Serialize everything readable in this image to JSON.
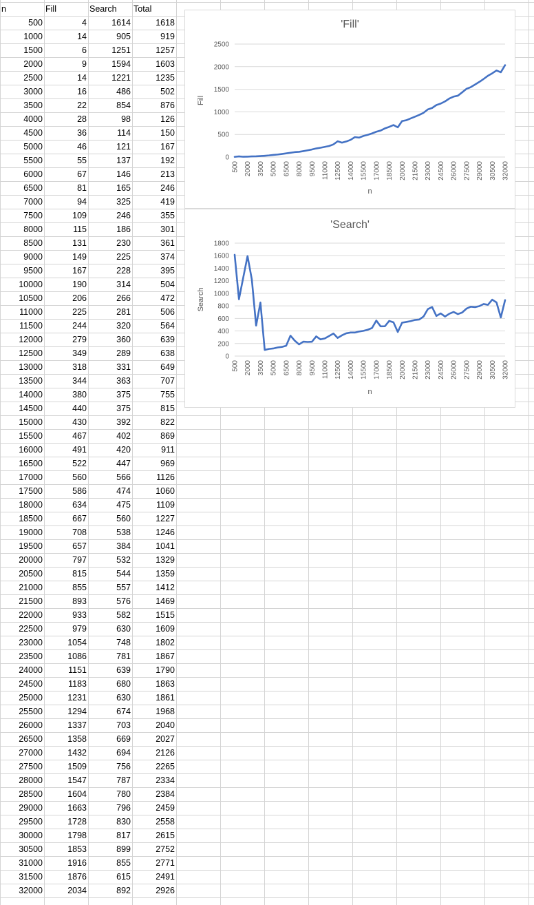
{
  "sheet": {
    "headers": [
      "n",
      "Fill",
      "Search",
      "Total"
    ],
    "rows": [
      [
        500,
        4,
        1614,
        1618
      ],
      [
        1000,
        14,
        905,
        919
      ],
      [
        1500,
        6,
        1251,
        1257
      ],
      [
        2000,
        9,
        1594,
        1603
      ],
      [
        2500,
        14,
        1221,
        1235
      ],
      [
        3000,
        16,
        486,
        502
      ],
      [
        3500,
        22,
        854,
        876
      ],
      [
        4000,
        28,
        98,
        126
      ],
      [
        4500,
        36,
        114,
        150
      ],
      [
        5000,
        46,
        121,
        167
      ],
      [
        5500,
        55,
        137,
        192
      ],
      [
        6000,
        67,
        146,
        213
      ],
      [
        6500,
        81,
        165,
        246
      ],
      [
        7000,
        94,
        325,
        419
      ],
      [
        7500,
        109,
        246,
        355
      ],
      [
        8000,
        115,
        186,
        301
      ],
      [
        8500,
        131,
        230,
        361
      ],
      [
        9000,
        149,
        225,
        374
      ],
      [
        9500,
        167,
        228,
        395
      ],
      [
        10000,
        190,
        314,
        504
      ],
      [
        10500,
        206,
        266,
        472
      ],
      [
        11000,
        225,
        281,
        506
      ],
      [
        11500,
        244,
        320,
        564
      ],
      [
        12000,
        279,
        360,
        639
      ],
      [
        12500,
        349,
        289,
        638
      ],
      [
        13000,
        318,
        331,
        649
      ],
      [
        13500,
        344,
        363,
        707
      ],
      [
        14000,
        380,
        375,
        755
      ],
      [
        14500,
        440,
        375,
        815
      ],
      [
        15000,
        430,
        392,
        822
      ],
      [
        15500,
        467,
        402,
        869
      ],
      [
        16000,
        491,
        420,
        911
      ],
      [
        16500,
        522,
        447,
        969
      ],
      [
        17000,
        560,
        566,
        1126
      ],
      [
        17500,
        586,
        474,
        1060
      ],
      [
        18000,
        634,
        475,
        1109
      ],
      [
        18500,
        667,
        560,
        1227
      ],
      [
        19000,
        708,
        538,
        1246
      ],
      [
        19500,
        657,
        384,
        1041
      ],
      [
        20000,
        797,
        532,
        1329
      ],
      [
        20500,
        815,
        544,
        1359
      ],
      [
        21000,
        855,
        557,
        1412
      ],
      [
        21500,
        893,
        576,
        1469
      ],
      [
        22000,
        933,
        582,
        1515
      ],
      [
        22500,
        979,
        630,
        1609
      ],
      [
        23000,
        1054,
        748,
        1802
      ],
      [
        23500,
        1086,
        781,
        1867
      ],
      [
        24000,
        1151,
        639,
        1790
      ],
      [
        24500,
        1183,
        680,
        1863
      ],
      [
        25000,
        1231,
        630,
        1861
      ],
      [
        25500,
        1294,
        674,
        1968
      ],
      [
        26000,
        1337,
        703,
        2040
      ],
      [
        26500,
        1358,
        669,
        2027
      ],
      [
        27000,
        1432,
        694,
        2126
      ],
      [
        27500,
        1509,
        756,
        2265
      ],
      [
        28000,
        1547,
        787,
        2334
      ],
      [
        28500,
        1604,
        780,
        2384
      ],
      [
        29000,
        1663,
        796,
        2459
      ],
      [
        29500,
        1728,
        830,
        2558
      ],
      [
        30000,
        1798,
        817,
        2615
      ],
      [
        30500,
        1853,
        899,
        2752
      ],
      [
        31000,
        1916,
        855,
        2771
      ],
      [
        31500,
        1876,
        615,
        2491
      ],
      [
        32000,
        2034,
        892,
        2926
      ]
    ]
  },
  "chart_data": [
    {
      "type": "line",
      "title": "'Fill'",
      "xlabel": "n",
      "ylabel": "Fill",
      "ylim": [
        0,
        2500
      ],
      "yticks": [
        0,
        500,
        1000,
        1500,
        2000,
        2500
      ],
      "x": [
        500,
        1000,
        1500,
        2000,
        2500,
        3000,
        3500,
        4000,
        4500,
        5000,
        5500,
        6000,
        6500,
        7000,
        7500,
        8000,
        8500,
        9000,
        9500,
        10000,
        10500,
        11000,
        11500,
        12000,
        12500,
        13000,
        13500,
        14000,
        14500,
        15000,
        15500,
        16000,
        16500,
        17000,
        17500,
        18000,
        18500,
        19000,
        19500,
        20000,
        20500,
        21000,
        21500,
        22000,
        22500,
        23000,
        23500,
        24000,
        24500,
        25000,
        25500,
        26000,
        26500,
        27000,
        27500,
        28000,
        28500,
        29000,
        29500,
        30000,
        30500,
        31000,
        31500,
        32000
      ],
      "xticks": [
        "500",
        "2000",
        "3500",
        "5000",
        "6500",
        "8000",
        "9500",
        "11000",
        "12500",
        "14000",
        "15500",
        "17000",
        "18500",
        "20000",
        "21500",
        "23000",
        "24500",
        "26000",
        "27500",
        "29000",
        "30500",
        "32000"
      ],
      "values": [
        4,
        14,
        6,
        9,
        14,
        16,
        22,
        28,
        36,
        46,
        55,
        67,
        81,
        94,
        109,
        115,
        131,
        149,
        167,
        190,
        206,
        225,
        244,
        279,
        349,
        318,
        344,
        380,
        440,
        430,
        467,
        491,
        522,
        560,
        586,
        634,
        667,
        708,
        657,
        797,
        815,
        855,
        893,
        933,
        979,
        1054,
        1086,
        1151,
        1183,
        1231,
        1294,
        1337,
        1358,
        1432,
        1509,
        1547,
        1604,
        1663,
        1728,
        1798,
        1853,
        1916,
        1876,
        2034
      ],
      "grid": true,
      "legend": "none",
      "color": "#4472c4"
    },
    {
      "type": "line",
      "title": "'Search'",
      "xlabel": "n",
      "ylabel": "Search",
      "ylim": [
        0,
        1800
      ],
      "yticks": [
        0,
        200,
        400,
        600,
        800,
        1000,
        1200,
        1400,
        1600,
        1800
      ],
      "x": [
        500,
        1000,
        1500,
        2000,
        2500,
        3000,
        3500,
        4000,
        4500,
        5000,
        5500,
        6000,
        6500,
        7000,
        7500,
        8000,
        8500,
        9000,
        9500,
        10000,
        10500,
        11000,
        11500,
        12000,
        12500,
        13000,
        13500,
        14000,
        14500,
        15000,
        15500,
        16000,
        16500,
        17000,
        17500,
        18000,
        18500,
        19000,
        19500,
        20000,
        20500,
        21000,
        21500,
        22000,
        22500,
        23000,
        23500,
        24000,
        24500,
        25000,
        25500,
        26000,
        26500,
        27000,
        27500,
        28000,
        28500,
        29000,
        29500,
        30000,
        30500,
        31000,
        31500,
        32000
      ],
      "xticks": [
        "500",
        "2000",
        "3500",
        "5000",
        "6500",
        "8000",
        "9500",
        "11000",
        "12500",
        "14000",
        "15500",
        "17000",
        "18500",
        "20000",
        "21500",
        "23000",
        "24500",
        "26000",
        "27500",
        "29000",
        "30500",
        "32000"
      ],
      "values": [
        1614,
        905,
        1251,
        1594,
        1221,
        486,
        854,
        98,
        114,
        121,
        137,
        146,
        165,
        325,
        246,
        186,
        230,
        225,
        228,
        314,
        266,
        281,
        320,
        360,
        289,
        331,
        363,
        375,
        375,
        392,
        402,
        420,
        447,
        566,
        474,
        475,
        560,
        538,
        384,
        532,
        544,
        557,
        576,
        582,
        630,
        748,
        781,
        639,
        680,
        630,
        674,
        703,
        669,
        694,
        756,
        787,
        780,
        796,
        830,
        817,
        899,
        855,
        615,
        892
      ],
      "grid": true,
      "legend": "none",
      "color": "#4472c4"
    }
  ]
}
